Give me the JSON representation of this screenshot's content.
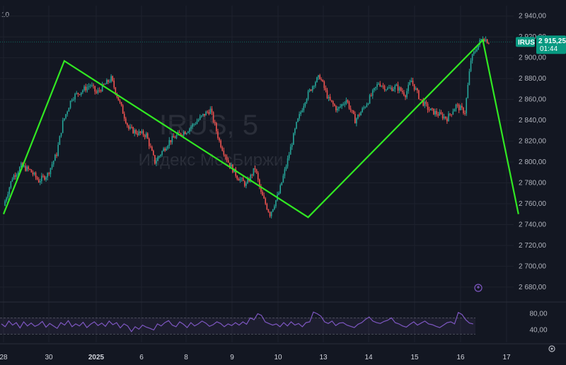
{
  "chart_data": {
    "type": "line",
    "symbol_watermark": "IRUS, 5",
    "name_watermark": "Индекс МосБиржи",
    "corner_label": "10",
    "price_axis": {
      "ylim": [
        2665,
        2950
      ],
      "ticks": [
        2940,
        2920,
        2900,
        2880,
        2860,
        2840,
        2820,
        2800,
        2780,
        2760,
        2740,
        2720,
        2700,
        2680
      ],
      "tick_labels": [
        "2 940,00",
        "2 920,00",
        "2 900,00",
        "2 880,00",
        "2 860,00",
        "2 840,00",
        "2 820,00",
        "2 800,00",
        "2 780,00",
        "2 760,00",
        "2 740,00",
        "2 720,00",
        "2 700,00",
        "2 680,00"
      ]
    },
    "last_price": {
      "ticker": "IRUS",
      "value": 2915.25,
      "label": "2 915,25",
      "countdown": "01:44"
    },
    "x_axis": {
      "labels": [
        "28",
        "30",
        "2025",
        "6",
        "8",
        "9",
        "10",
        "13",
        "14",
        "15",
        "16",
        "17"
      ]
    },
    "price_series": {
      "name": "",
      "x": [
        0,
        0.3,
        0.6,
        0.9,
        1.2,
        1.5,
        1.8,
        2.0,
        2.3,
        2.6,
        2.9,
        3.1,
        3.3,
        3.6,
        3.9,
        4.2,
        4.5,
        4.8,
        5.1,
        5.4,
        5.6,
        5.9,
        6.2,
        6.5,
        6.8,
        7.0,
        7.3,
        7.6,
        7.9,
        8.2,
        8.5,
        8.7,
        9.0,
        9.3,
        9.6,
        9.9,
        10.2,
        10.5,
        10.7,
        11.0,
        11.3,
        11.6,
        11.9,
        12.2,
        12.5,
        12.7,
        13.0,
        13.3,
        13.6,
        13.8,
        14.1,
        14.4,
        14.7,
        15.0,
        15.3,
        15.6,
        15.8,
        16.0,
        16.2,
        16.4
      ],
      "y": [
        2758,
        2785,
        2796,
        2792,
        2782,
        2788,
        2808,
        2838,
        2862,
        2868,
        2874,
        2866,
        2872,
        2880,
        2856,
        2832,
        2828,
        2826,
        2800,
        2812,
        2820,
        2826,
        2830,
        2838,
        2846,
        2850,
        2820,
        2800,
        2786,
        2778,
        2794,
        2770,
        2750,
        2770,
        2802,
        2836,
        2860,
        2876,
        2882,
        2860,
        2850,
        2860,
        2840,
        2852,
        2866,
        2876,
        2870,
        2872,
        2865,
        2878,
        2860,
        2850,
        2846,
        2842,
        2854,
        2848,
        2898,
        2910,
        2920,
        2915
      ]
    },
    "zigzag": {
      "x": [
        0,
        2.05,
        10.3,
        16.2,
        17.4
      ],
      "y": [
        2750,
        2897,
        2747,
        2917,
        2750
      ]
    },
    "oscillator": {
      "levels": [
        80,
        40
      ],
      "level_labels": [
        "80,00",
        "40,00"
      ],
      "upper_band": 70,
      "lower_band": 30,
      "values": [
        55,
        48,
        62,
        52,
        58,
        45,
        60,
        50,
        57,
        49,
        53,
        61,
        47,
        56,
        50,
        44,
        58,
        52,
        63,
        48,
        55,
        50,
        59,
        46,
        54,
        60,
        51,
        57,
        49,
        62,
        53,
        58,
        45,
        55,
        50,
        36,
        48,
        42,
        52,
        47,
        44,
        40,
        55,
        50,
        58,
        63,
        52,
        48,
        60,
        54,
        46,
        58,
        50,
        55,
        62,
        57,
        49,
        53,
        60,
        56,
        48,
        55,
        51,
        58,
        52,
        60,
        54,
        70,
        65,
        80,
        76,
        60,
        56,
        52,
        55,
        48,
        58,
        50,
        60,
        52,
        56,
        48,
        58,
        60,
        84,
        80,
        74,
        60,
        56,
        62,
        51,
        57,
        58,
        52,
        49,
        46,
        54,
        58,
        66,
        72,
        62,
        58,
        56,
        61,
        64,
        70,
        58,
        55,
        50,
        47,
        54,
        60,
        52,
        57,
        62,
        55,
        53,
        49,
        46,
        52,
        58,
        60,
        55,
        83,
        78,
        65,
        57,
        55
      ]
    },
    "colors": {
      "background": "#131722",
      "up": "#26a69a",
      "down": "#ef5350",
      "zigzag": "#31e822",
      "oscillator": "#7e57c2",
      "oscillator_band": "#9575cd",
      "price_label_bg": "#089981"
    }
  }
}
